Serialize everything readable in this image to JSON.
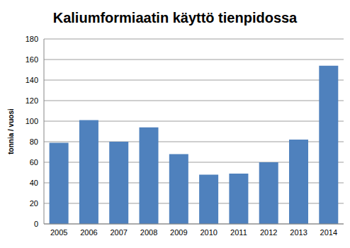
{
  "chart_data": {
    "type": "bar",
    "title": "Kaliumformiaatin käyttö tienpidossa",
    "y_label": "tonnia / vuosi",
    "categories": [
      "2005",
      "2006",
      "2007",
      "2008",
      "2009",
      "2010",
      "2011",
      "2012",
      "2013",
      "2014"
    ],
    "values": [
      79,
      101,
      80,
      94,
      68,
      48,
      49,
      60,
      82,
      154
    ],
    "color": "#4f81bd",
    "ylim": [
      0,
      180
    ],
    "yticks": [
      0,
      20,
      40,
      60,
      80,
      100,
      120,
      140,
      160,
      180
    ],
    "grid": true
  }
}
